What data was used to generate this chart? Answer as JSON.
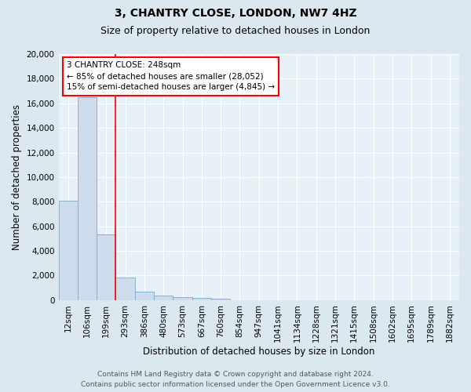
{
  "title": "3, CHANTRY CLOSE, LONDON, NW7 4HZ",
  "subtitle": "Size of property relative to detached houses in London",
  "xlabel": "Distribution of detached houses by size in London",
  "ylabel": "Number of detached properties",
  "footer_line1": "Contains HM Land Registry data © Crown copyright and database right 2024.",
  "footer_line2": "Contains public sector information licensed under the Open Government Licence v3.0.",
  "bar_labels": [
    "12sqm",
    "106sqm",
    "199sqm",
    "293sqm",
    "386sqm",
    "480sqm",
    "573sqm",
    "667sqm",
    "760sqm",
    "854sqm",
    "947sqm",
    "1041sqm",
    "1134sqm",
    "1228sqm",
    "1321sqm",
    "1415sqm",
    "1508sqm",
    "1602sqm",
    "1695sqm",
    "1789sqm",
    "1882sqm"
  ],
  "bar_values": [
    8100,
    16500,
    5350,
    1830,
    680,
    380,
    220,
    190,
    130,
    0,
    0,
    0,
    0,
    0,
    0,
    0,
    0,
    0,
    0,
    0,
    0
  ],
  "bar_color": "#ccdcec",
  "bar_edge_color": "#7aaac8",
  "red_line_x": 2.5,
  "annotation_line1": "3 CHANTRY CLOSE: 248sqm",
  "annotation_line2": "← 85% of detached houses are smaller (28,052)",
  "annotation_line3": "15% of semi-detached houses are larger (4,845) →",
  "annotation_box_color": "white",
  "annotation_box_edge": "red",
  "ylim": [
    0,
    20000
  ],
  "yticks": [
    0,
    2000,
    4000,
    6000,
    8000,
    10000,
    12000,
    14000,
    16000,
    18000,
    20000
  ],
  "bg_color": "#dce8f0",
  "plot_bg_color": "#e8f0f8",
  "grid_color": "white",
  "title_fontsize": 10,
  "subtitle_fontsize": 9,
  "axis_label_fontsize": 8.5,
  "tick_fontsize": 7.5,
  "annotation_fontsize": 7.5,
  "footer_fontsize": 6.5
}
